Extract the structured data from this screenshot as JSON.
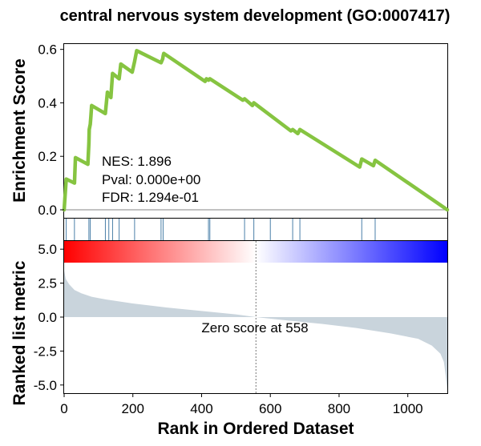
{
  "chart_data": [
    {
      "type": "line",
      "title": "central nervous system development (GO:0007417)",
      "ylabel": "Enrichment Score",
      "xlim": [
        0,
        1115
      ],
      "ylim": [
        -0.03,
        0.62
      ],
      "yticks": [
        "0.0",
        "0.2",
        "0.4",
        "0.6"
      ],
      "yticks_values": [
        0.0,
        0.2,
        0.4,
        0.6
      ],
      "line_color": "#86C441",
      "zero_line_color": "#9e9e9e",
      "stats": [
        "NES: 1.896",
        "Pval: 0.000e+00",
        "FDR: 1.294e-01"
      ],
      "series": [
        {
          "x": [
            0,
            6,
            30,
            33,
            69,
            72,
            73,
            76,
            78,
            80,
            120,
            126,
            136,
            141,
            160,
            165,
            198,
            205,
            208,
            211,
            282,
            287,
            288,
            290,
            410,
            414,
            420,
            424,
            520,
            525,
            548,
            552,
            660,
            665,
            680,
            686,
            860,
            866,
            900,
            905,
            1115
          ],
          "y": [
            0.0,
            0.115,
            0.1,
            0.195,
            0.17,
            0.25,
            0.3,
            0.32,
            0.35,
            0.39,
            0.36,
            0.44,
            0.42,
            0.51,
            0.49,
            0.545,
            0.515,
            0.555,
            0.575,
            0.595,
            0.55,
            0.565,
            0.575,
            0.585,
            0.48,
            0.49,
            0.485,
            0.49,
            0.41,
            0.415,
            0.39,
            0.4,
            0.295,
            0.3,
            0.285,
            0.3,
            0.16,
            0.19,
            0.165,
            0.185,
            0.0
          ]
        }
      ]
    },
    {
      "type": "hits",
      "hit_color": "#4a7fa8",
      "hits": [
        6,
        30,
        72,
        76,
        120,
        130,
        141,
        160,
        205,
        282,
        288,
        420,
        424,
        525,
        552,
        600,
        665,
        686,
        866,
        905
      ]
    },
    {
      "type": "colorbar",
      "colors": [
        "#ff0000",
        "#ffffff",
        "#0000ff"
      ]
    },
    {
      "type": "area",
      "ylabel": "Ranked list metric",
      "xlabel": "Rank in Ordered Dataset",
      "xlim": [
        0,
        1115
      ],
      "ylim": [
        -5.6,
        5.6
      ],
      "xticks": [
        "0",
        "200",
        "400",
        "600",
        "800",
        "1000"
      ],
      "xticks_values": [
        0,
        200,
        400,
        600,
        800,
        1000
      ],
      "yticks": [
        "5.0",
        "2.5",
        "0.0",
        "-2.5",
        "-5.0"
      ],
      "yticks_values": [
        5.0,
        2.5,
        0.0,
        -2.5,
        -5.0
      ],
      "fill_color": "#c9d4dc",
      "zero_rank": 558,
      "annotation": "Zero score at 558",
      "series": [
        {
          "x": [
            0,
            5,
            15,
            30,
            50,
            80,
            120,
            200,
            300,
            400,
            500,
            558,
            650,
            750,
            850,
            950,
            1030,
            1070,
            1095,
            1105,
            1110,
            1115
          ],
          "y": [
            3.4,
            2.8,
            2.4,
            2.0,
            1.75,
            1.5,
            1.3,
            1.0,
            0.7,
            0.45,
            0.2,
            0.0,
            -0.25,
            -0.5,
            -0.8,
            -1.2,
            -1.6,
            -2.1,
            -2.7,
            -3.3,
            -4.3,
            -5.4
          ]
        }
      ]
    }
  ]
}
